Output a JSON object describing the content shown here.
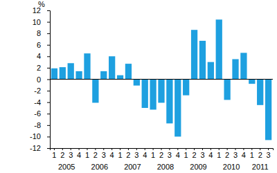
{
  "chart_data": {
    "type": "bar",
    "y_label": "%",
    "categories": [
      "1",
      "2",
      "3",
      "4",
      "1",
      "2",
      "3",
      "4",
      "1",
      "2",
      "3",
      "4",
      "1",
      "2",
      "3",
      "4",
      "1",
      "2",
      "3",
      "4",
      "1",
      "2",
      "3",
      "4",
      "1",
      "2",
      "3"
    ],
    "category_groups": [
      "2005",
      null,
      null,
      null,
      "2006",
      null,
      null,
      null,
      "2007",
      null,
      null,
      null,
      "2008",
      null,
      null,
      null,
      "2009",
      null,
      null,
      null,
      "2010",
      null,
      null,
      null,
      "2011",
      null,
      null
    ],
    "values": [
      1.9,
      2.1,
      2.8,
      1.4,
      4.5,
      -4.1,
      1.4,
      4.0,
      0.7,
      2.7,
      -1.1,
      -5.0,
      -5.3,
      -4.1,
      -7.7,
      -10.0,
      -2.8,
      8.6,
      6.7,
      3.0,
      10.4,
      -3.6,
      3.5,
      4.6,
      -0.8,
      -4.5,
      -10.6
    ],
    "color": "#1ea0e0",
    "ylim": [
      -12,
      12
    ],
    "yticks": [
      -12,
      -10,
      -8,
      -6,
      -4,
      -2,
      0,
      2,
      4,
      6,
      8,
      10,
      12
    ],
    "grid": false
  }
}
